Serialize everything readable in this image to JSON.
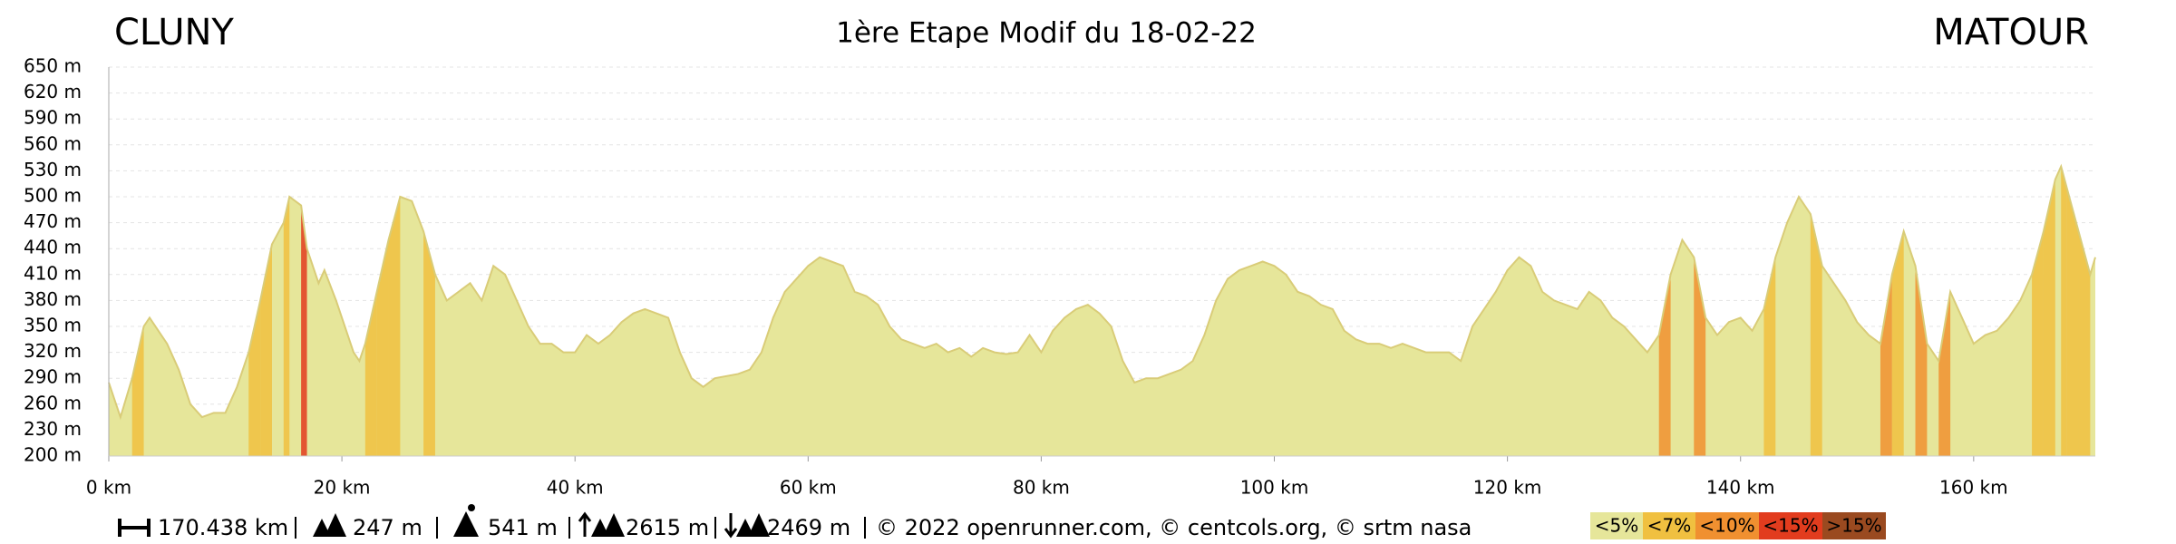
{
  "chart_data": {
    "type": "area",
    "start": "CLUNY",
    "title": "1ère Etape Modif du 18-02-22",
    "end": "MATOUR",
    "color": "#e6e69a",
    "line_color": "#d9cc78",
    "grid": true,
    "x": [
      0,
      1,
      2,
      3,
      3.5,
      5,
      6,
      7,
      8,
      9,
      10,
      11,
      12,
      13,
      14,
      15,
      15.5,
      16.5,
      17,
      18,
      18.5,
      19.5,
      20,
      21,
      21.5,
      22,
      23,
      24,
      25,
      26,
      27,
      28,
      29,
      30,
      31,
      32,
      33,
      34,
      35,
      36,
      37,
      38,
      39,
      40,
      41,
      42,
      43,
      44,
      45,
      46,
      47,
      48,
      49,
      50,
      51,
      52,
      54,
      55,
      56,
      57,
      58,
      59,
      60,
      61,
      62,
      63,
      64,
      65,
      66,
      67,
      68,
      69,
      70,
      71,
      72,
      73,
      74,
      75,
      76,
      77,
      78,
      79,
      80,
      81,
      82,
      83,
      84,
      85,
      86,
      87,
      88,
      89,
      90,
      91,
      92,
      93,
      94,
      95,
      96,
      97,
      98,
      99,
      100,
      101,
      102,
      103,
      104,
      105,
      106,
      107,
      108,
      109,
      110,
      111,
      112,
      113,
      114,
      115,
      116,
      117,
      118,
      119,
      120,
      121,
      122,
      123,
      124,
      125,
      126,
      127,
      128,
      129,
      130,
      131,
      132,
      133,
      134,
      135,
      136,
      137,
      138,
      139,
      140,
      141,
      142,
      143,
      144,
      145,
      146,
      147,
      148,
      149,
      150,
      151,
      152,
      153,
      154,
      155,
      156,
      157,
      158,
      159,
      160,
      161,
      162,
      163,
      164,
      165,
      166,
      167,
      167.5,
      168,
      169,
      170,
      170.438
    ],
    "values": [
      285,
      245,
      290,
      350,
      360,
      330,
      300,
      260,
      245,
      250,
      250,
      280,
      320,
      380,
      445,
      470,
      500,
      490,
      440,
      400,
      415,
      380,
      360,
      320,
      310,
      330,
      390,
      450,
      500,
      495,
      460,
      410,
      380,
      390,
      400,
      380,
      420,
      410,
      380,
      350,
      330,
      330,
      320,
      320,
      340,
      330,
      340,
      355,
      365,
      370,
      365,
      360,
      320,
      290,
      280,
      290,
      295,
      300,
      320,
      360,
      390,
      405,
      420,
      430,
      425,
      420,
      390,
      385,
      375,
      350,
      335,
      330,
      325,
      330,
      320,
      325,
      315,
      325,
      320,
      318,
      320,
      340,
      320,
      345,
      360,
      370,
      375,
      365,
      350,
      310,
      285,
      290,
      290,
      295,
      300,
      310,
      340,
      380,
      405,
      415,
      420,
      425,
      420,
      410,
      390,
      385,
      375,
      370,
      345,
      335,
      330,
      330,
      325,
      330,
      325,
      320,
      320,
      320,
      310,
      350,
      370,
      390,
      415,
      430,
      420,
      390,
      380,
      375,
      370,
      390,
      380,
      360,
      350,
      335,
      320,
      340,
      410,
      450,
      430,
      360,
      340,
      355,
      360,
      345,
      370,
      430,
      470,
      500,
      480,
      420,
      400,
      380,
      355,
      340,
      330,
      410,
      460,
      420,
      330,
      310,
      390,
      360,
      330,
      340,
      345,
      360,
      380,
      410,
      460,
      520,
      535,
      510,
      460,
      410,
      430
    ],
    "xlim": [
      0,
      170.438
    ],
    "ylim": [
      200,
      650
    ],
    "xticks": [
      {
        "value": 0,
        "label": "0 km"
      },
      {
        "value": 20,
        "label": "20 km"
      },
      {
        "value": 40,
        "label": "40 km"
      },
      {
        "value": 60,
        "label": "60 km"
      },
      {
        "value": 80,
        "label": "80 km"
      },
      {
        "value": 100,
        "label": "100 km"
      },
      {
        "value": 120,
        "label": "120 km"
      },
      {
        "value": 140,
        "label": "140 km"
      },
      {
        "value": 160,
        "label": "160 km"
      }
    ],
    "yticks": [
      {
        "value": 200,
        "label": "200 m"
      },
      {
        "value": 230,
        "label": "230 m"
      },
      {
        "value": 260,
        "label": "260 m"
      },
      {
        "value": 290,
        "label": "290 m"
      },
      {
        "value": 320,
        "label": "320 m"
      },
      {
        "value": 350,
        "label": "350 m"
      },
      {
        "value": 380,
        "label": "380 m"
      },
      {
        "value": 410,
        "label": "410 m"
      },
      {
        "value": 440,
        "label": "440 m"
      },
      {
        "value": 470,
        "label": "470 m"
      },
      {
        "value": 500,
        "label": "500 m"
      },
      {
        "value": 530,
        "label": "530 m"
      },
      {
        "value": 560,
        "label": "560 m"
      },
      {
        "value": 590,
        "label": "590 m"
      },
      {
        "value": 620,
        "label": "620 m"
      },
      {
        "value": 650,
        "label": "650 m"
      }
    ],
    "legend": [
      {
        "label": "<5%",
        "value": 5,
        "color": "#e6e69a"
      },
      {
        "label": "<7%",
        "value": 7,
        "color": "#f0c040"
      },
      {
        "label": "<10%",
        "value": 10,
        "color": "#f09030"
      },
      {
        "label": "<15%",
        "value": 15,
        "color": "#e23c1e"
      },
      {
        "label": ">15%",
        "value": 15,
        "color": "#9a4a20"
      }
    ],
    "stats": {
      "distance": "170.438 km",
      "min_alt": "247 m",
      "max_alt": "541 m",
      "ascent": "2615 m",
      "descent": "2469 m",
      "credits": "© 2022 openrunner.com, © centcols.org, © srtm nasa"
    }
  }
}
